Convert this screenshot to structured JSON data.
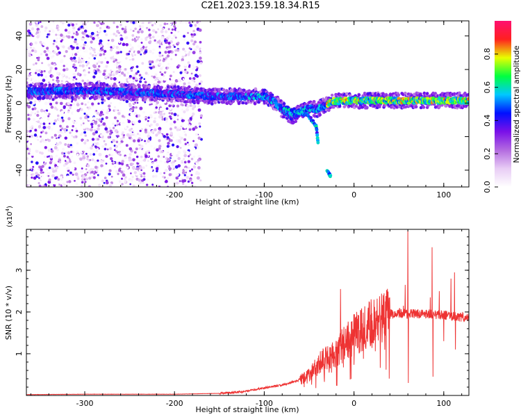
{
  "title": "C2E1.2023.159.18.34.R15",
  "chart_data": [
    {
      "type": "heatmap",
      "xlabel": "Height of straight line (km)",
      "ylabel": "Frequency (Hz)",
      "xlim": [
        -365,
        128
      ],
      "ylim": [
        -50,
        49
      ],
      "xticks": [
        -300,
        -200,
        -100,
        0,
        100
      ],
      "yticks": [
        -40,
        -20,
        0,
        20,
        40
      ],
      "colorbar": {
        "label": "Normalized spectral amplitude",
        "range": [
          0,
          1
        ],
        "ticks": [
          "0.0",
          "0.2",
          "0.4",
          "0.6",
          "0.8"
        ],
        "colors": [
          "#ffffff",
          "#e8ccf5",
          "#b36be0",
          "#7a10e8",
          "#0010ff",
          "#00c8ff",
          "#00ff40",
          "#e8ff00",
          "#ff2020",
          "#ff1070"
        ]
      },
      "ridge": [
        {
          "x": -355,
          "f": 7
        },
        {
          "x": -300,
          "f": 7.5
        },
        {
          "x": -250,
          "f": 6.5
        },
        {
          "x": -200,
          "f": 5.5
        },
        {
          "x": -160,
          "f": 4
        },
        {
          "x": -120,
          "f": 4
        },
        {
          "x": -100,
          "f": 4
        },
        {
          "x": -90,
          "f": 1
        },
        {
          "x": -80,
          "f": -4
        },
        {
          "x": -70,
          "f": -8
        },
        {
          "x": -60,
          "f": -5
        },
        {
          "x": -50,
          "f": -3
        },
        {
          "x": -42,
          "f": -4
        },
        {
          "x": -35,
          "f": -2
        },
        {
          "x": -25,
          "f": 1
        },
        {
          "x": 0,
          "f": 1.5
        },
        {
          "x": 40,
          "f": 1.5
        },
        {
          "x": 80,
          "f": 1.5
        },
        {
          "x": 125,
          "f": 1.5
        }
      ],
      "branches": [
        {
          "x": [
            -75,
            -62,
            -50,
            -42,
            -40
          ],
          "f": [
            -3,
            -5,
            -8,
            -14,
            -24
          ]
        },
        {
          "x": [
            -30,
            -26
          ],
          "f": [
            -40,
            -44
          ]
        }
      ]
    },
    {
      "type": "line",
      "xlabel": "Height of straight line (km)",
      "ylabel": "SNR (10 * v/v)",
      "yscale_label": "(x10",
      "yscale_exp": "4",
      "yscale_close": ")",
      "xlim": [
        -365,
        128
      ],
      "ylim": [
        0,
        3.98
      ],
      "xticks": [
        -300,
        -200,
        -100,
        0,
        100
      ],
      "yticks": [
        1,
        2,
        3
      ],
      "color": "#ee3333",
      "x": [
        -365,
        -300,
        -200,
        -150,
        -120,
        -100,
        -80,
        -60,
        -50,
        -40,
        -30,
        -20,
        -10,
        0,
        10,
        20,
        30,
        40,
        50,
        55,
        60,
        70,
        80,
        90,
        100,
        110,
        120,
        128
      ],
      "y": [
        0.02,
        0.03,
        0.03,
        0.05,
        0.1,
        0.18,
        0.25,
        0.38,
        0.5,
        0.75,
        0.9,
        1.05,
        1.25,
        1.45,
        1.6,
        1.72,
        1.85,
        1.95,
        1.98,
        1.97,
        1.95,
        1.95,
        1.95,
        1.94,
        1.93,
        1.9,
        1.88,
        1.85
      ],
      "spikes": [
        {
          "x": -15,
          "y": 2.55
        },
        {
          "x": 55,
          "y": 2.15
        },
        {
          "x": 57,
          "y": 2.65
        },
        {
          "x": 60,
          "y": 3.95
        },
        {
          "x": 60.5,
          "y": 0.3
        },
        {
          "x": 85,
          "y": 2.35
        },
        {
          "x": 87,
          "y": 3.55
        },
        {
          "x": 88,
          "y": 0.45
        },
        {
          "x": 95,
          "y": 2.5
        },
        {
          "x": 100,
          "y": 1.3
        },
        {
          "x": 108,
          "y": 2.8
        },
        {
          "x": 112,
          "y": 2.95
        },
        {
          "x": 113,
          "y": 1.1
        }
      ]
    }
  ]
}
